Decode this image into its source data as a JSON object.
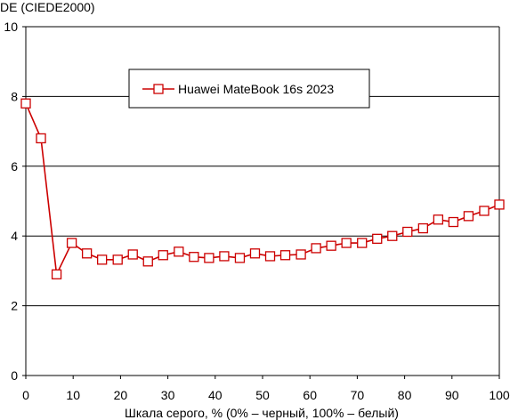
{
  "chart_data": {
    "type": "line",
    "ylabel": "DE (CIEDE2000)",
    "xlabel": "Шкала серого, % (0% – черный, 100% – белый)",
    "xlim": [
      0,
      100
    ],
    "ylim": [
      0,
      10
    ],
    "xticks": [
      0,
      10,
      20,
      30,
      40,
      50,
      60,
      70,
      80,
      90,
      100
    ],
    "yticks": [
      0,
      2,
      4,
      6,
      8,
      10
    ],
    "grid": "horizontal",
    "legend_placement": "top-center",
    "series": [
      {
        "name": "Huawei MateBook 16s 2023",
        "color": "#cc0000",
        "marker": "open-square",
        "x": [
          0,
          3.2,
          6.5,
          9.7,
          12.9,
          16.1,
          19.4,
          22.6,
          25.8,
          29.0,
          32.3,
          35.5,
          38.7,
          41.9,
          45.2,
          48.4,
          51.6,
          54.8,
          58.1,
          61.3,
          64.5,
          67.7,
          71.0,
          74.2,
          77.4,
          80.6,
          83.9,
          87.1,
          90.3,
          93.5,
          96.8,
          100
        ],
        "y": [
          7.8,
          6.8,
          2.9,
          3.8,
          3.5,
          3.32,
          3.32,
          3.47,
          3.27,
          3.45,
          3.55,
          3.4,
          3.37,
          3.42,
          3.37,
          3.5,
          3.42,
          3.45,
          3.47,
          3.65,
          3.72,
          3.8,
          3.8,
          3.92,
          4.0,
          4.12,
          4.22,
          4.47,
          4.4,
          4.57,
          4.72,
          4.9
        ]
      }
    ]
  }
}
